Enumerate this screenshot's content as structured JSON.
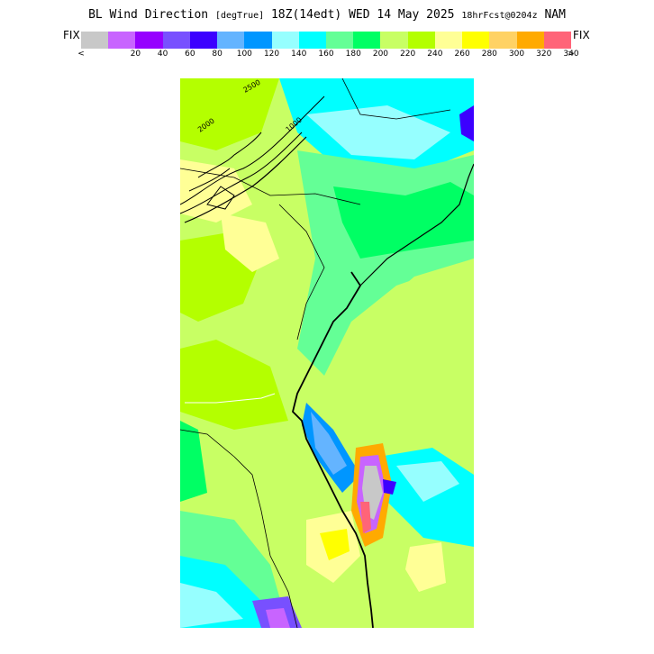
{
  "header": {
    "title_main": "BL Wind Direction",
    "title_units": "[degTrue]",
    "title_time": "18Z(14edt) WED 14 May 2025",
    "title_fcst": "18hrFcst@0204z",
    "title_model": "NAM"
  },
  "legend": {
    "fix_left": "FIX",
    "fix_right": "FIX",
    "lt": "<",
    "gt": ">",
    "tick_labels": [
      "20",
      "40",
      "60",
      "80",
      "100",
      "120",
      "140",
      "160",
      "180",
      "200",
      "220",
      "240",
      "260",
      "280",
      "300",
      "320",
      "340"
    ],
    "colors": [
      "#c8c8c8",
      "#c864ff",
      "#9600ff",
      "#7850ff",
      "#3c00ff",
      "#64b4ff",
      "#0096ff",
      "#96ffff",
      "#00ffff",
      "#64ff96",
      "#00ff64",
      "#c8ff64",
      "#b4ff00",
      "#ffff96",
      "#ffff00",
      "#ffd264",
      "#ffaa00",
      "#ff6478"
    ]
  },
  "map": {
    "contour_labels": [
      "2500",
      "2000",
      "1000"
    ]
  }
}
